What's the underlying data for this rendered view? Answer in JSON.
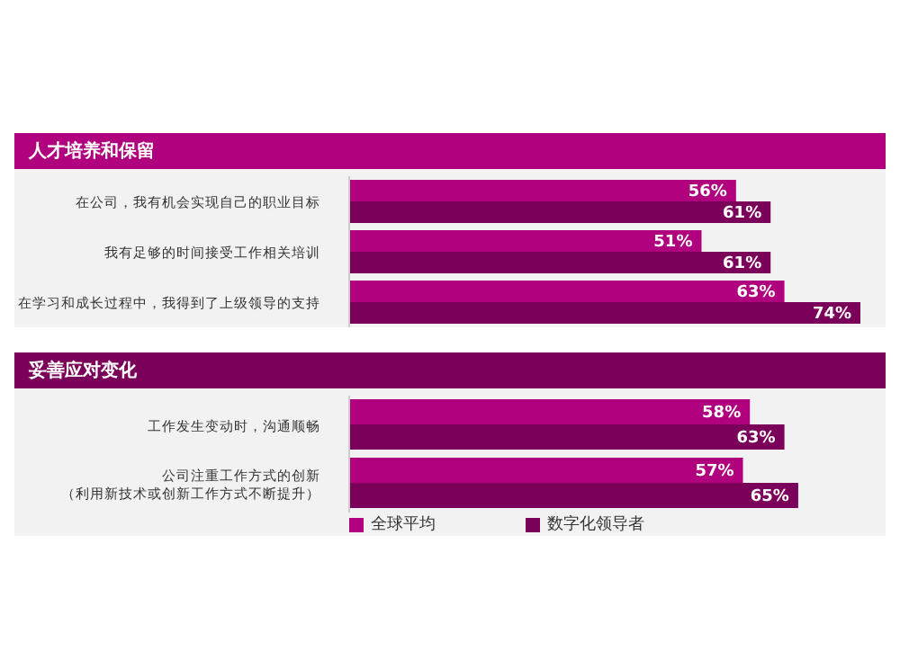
{
  "chart_data": [
    {
      "type": "bar",
      "orientation": "horizontal",
      "title": "人才培养和保留",
      "categories": [
        "在公司，我有机会实现自己的职业目标",
        "我有足够的时间接受工作相关培训",
        "在学习和成长过程中，我得到了上级领导的支持"
      ],
      "series": [
        {
          "color": "#b0007e",
          "values": [
            56,
            51,
            63
          ],
          "value_labels": [
            "56%",
            "51%",
            "63%"
          ]
        },
        {
          "color": "#7a0059",
          "values": [
            61,
            61,
            74
          ],
          "value_labels": [
            "61%",
            "61%",
            "74%"
          ]
        }
      ],
      "legend": false
    },
    {
      "type": "bar",
      "orientation": "horizontal",
      "title": "妥善应对变化",
      "categories": [
        "工作发生变动时，沟通顺畅",
        "公司注重工作方式的创新（利用新技术或创新工作方式不断提升）"
      ],
      "series": [
        {
          "name": "全球平均",
          "color": "#b0007e",
          "values": [
            58,
            57
          ],
          "value_labels": [
            "58%",
            "57%"
          ]
        },
        {
          "name": "数字化领导者",
          "color": "#7a0059",
          "values": [
            63,
            65
          ],
          "value_labels": [
            "63%",
            "65%"
          ]
        }
      ],
      "legend": "bottom left"
    }
  ]
}
